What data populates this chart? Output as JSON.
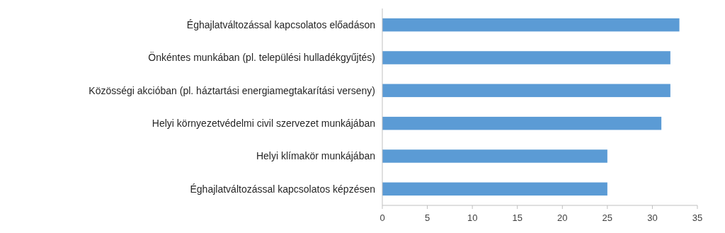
{
  "chart_data": {
    "type": "bar",
    "orientation": "horizontal",
    "categories": [
      "Éghajlatváltozással kapcsolatos előadáson",
      "Önkéntes munkában (pl. települési hulladékgyűjtés)",
      "Közösségi akcióban (pl. háztartási energiamegtakarítási verseny)",
      "Helyi környezetvédelmi civil szervezet munkájában",
      "Helyi klímakör munkájában",
      "Éghajlatváltozással kapcsolatos képzésen"
    ],
    "values": [
      33,
      32,
      32,
      31,
      25,
      25
    ],
    "color": "#5b9bd5",
    "xlim": [
      0,
      35
    ],
    "xticks": [
      0,
      5,
      10,
      15,
      20,
      25,
      30,
      35
    ],
    "grid": false
  }
}
